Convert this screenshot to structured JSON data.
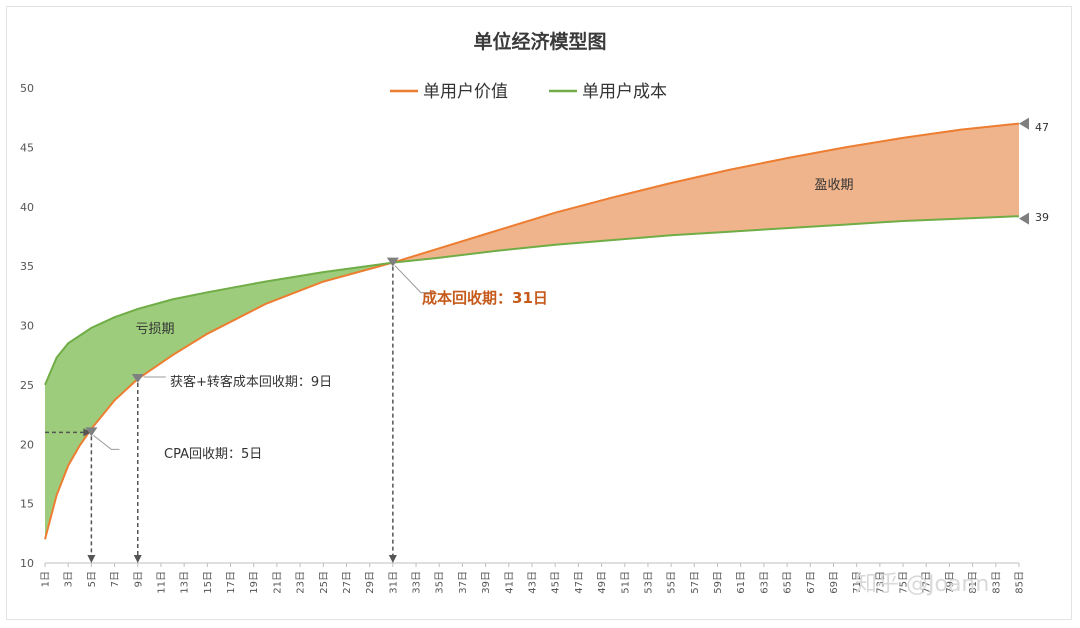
{
  "chart_data": {
    "type": "area",
    "title": "单位经济模型图",
    "x_day_suffix": "日",
    "x_days": [
      1,
      85
    ],
    "x_tick_days": [
      1,
      3,
      5,
      7,
      9,
      11,
      13,
      15,
      17,
      19,
      21,
      23,
      25,
      27,
      29,
      31,
      33,
      35,
      37,
      39,
      41,
      43,
      45,
      47,
      49,
      51,
      53,
      55,
      57,
      59,
      61,
      63,
      65,
      67,
      69,
      71,
      73,
      75,
      77,
      79,
      81,
      83,
      85
    ],
    "ylim": [
      10,
      50
    ],
    "yticks": [
      10,
      15,
      20,
      25,
      30,
      35,
      40,
      45,
      50
    ],
    "series": [
      {
        "name": "单用户价值",
        "color": "#ed7d31",
        "points": [
          [
            1,
            12
          ],
          [
            2,
            15.7
          ],
          [
            3,
            18.2
          ],
          [
            4,
            19.9
          ],
          [
            5,
            21.3
          ],
          [
            7,
            23.7
          ],
          [
            9,
            25.5
          ],
          [
            12,
            27.5
          ],
          [
            15,
            29.3
          ],
          [
            20,
            31.8
          ],
          [
            25,
            33.7
          ],
          [
            31,
            35.3
          ],
          [
            35,
            36.5
          ],
          [
            40,
            38.0
          ],
          [
            45,
            39.5
          ],
          [
            50,
            40.8
          ],
          [
            55,
            42.0
          ],
          [
            60,
            43.1
          ],
          [
            65,
            44.1
          ],
          [
            70,
            45.0
          ],
          [
            75,
            45.8
          ],
          [
            80,
            46.5
          ],
          [
            85,
            47.0
          ]
        ]
      },
      {
        "name": "单用户成本",
        "color": "#70ad47",
        "points": [
          [
            1,
            25
          ],
          [
            2,
            27.3
          ],
          [
            3,
            28.5
          ],
          [
            5,
            29.8
          ],
          [
            7,
            30.7
          ],
          [
            9,
            31.4
          ],
          [
            12,
            32.2
          ],
          [
            15,
            32.8
          ],
          [
            20,
            33.7
          ],
          [
            25,
            34.5
          ],
          [
            31,
            35.3
          ],
          [
            35,
            35.7
          ],
          [
            40,
            36.3
          ],
          [
            45,
            36.8
          ],
          [
            50,
            37.2
          ],
          [
            55,
            37.6
          ],
          [
            60,
            37.9
          ],
          [
            65,
            38.2
          ],
          [
            70,
            38.5
          ],
          [
            75,
            38.8
          ],
          [
            80,
            39.0
          ],
          [
            85,
            39.2
          ]
        ]
      }
    ],
    "fills": {
      "loss_color": "#9ccc7c",
      "profit_color": "#efb48c"
    },
    "annotations": {
      "loss_zone": "亏损期",
      "profit_zone": "盈收期",
      "cpa": {
        "text": "CPA回收期：5日",
        "day": 5,
        "value": 21
      },
      "acq": {
        "text": "获客+转客成本回收期：9日",
        "day": 9,
        "value": 25.5
      },
      "breakeven": {
        "text": "成本回收期：31日",
        "day": 31,
        "value": 35.3
      },
      "end_value": {
        "label": "47",
        "value": 47
      },
      "end_cost": {
        "label": "39",
        "value": 39
      }
    },
    "legend_position": "top-center"
  },
  "watermark": "知乎 @Joann"
}
